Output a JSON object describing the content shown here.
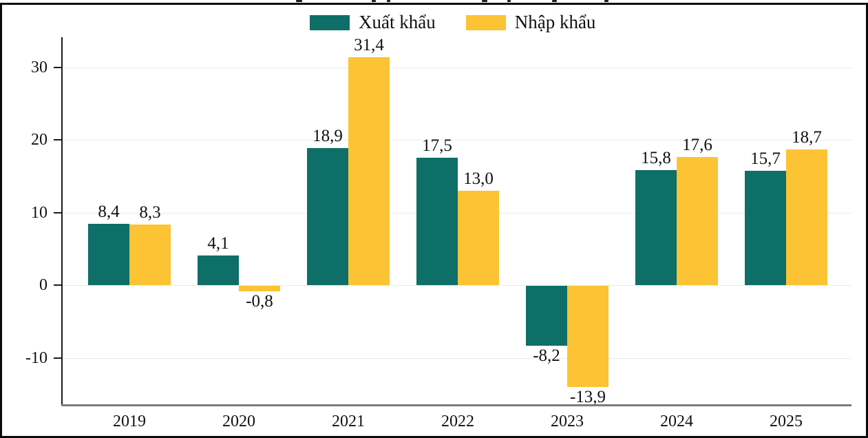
{
  "legend": {
    "items": [
      {
        "label": "Xuất khẩu",
        "color": "#0E6E68"
      },
      {
        "label": "Nhập khẩu",
        "color": "#FCC434"
      }
    ]
  },
  "chart_data": {
    "type": "bar",
    "categories": [
      "2019",
      "2020",
      "2021",
      "2022",
      "2023",
      "2024",
      "2025"
    ],
    "series": [
      {
        "name": "Xuất khẩu",
        "color": "#0E6E68",
        "values": [
          8.4,
          4.1,
          18.9,
          17.5,
          -8.2,
          15.8,
          15.7
        ],
        "labels": [
          "8,4",
          "4,1",
          "18,9",
          "17,5",
          "-8,2",
          "15,8",
          "15,7"
        ]
      },
      {
        "name": "Nhập khẩu",
        "color": "#FCC434",
        "values": [
          8.3,
          -0.8,
          31.4,
          13.0,
          -13.9,
          17.6,
          18.7
        ],
        "labels": [
          "8,3",
          "-0,8",
          "31,4",
          "13,0",
          "-13,9",
          "17,6",
          "18,7"
        ]
      }
    ],
    "y_ticks": [
      30,
      20,
      10,
      0,
      -10
    ],
    "y_tick_labels": [
      "30",
      "20",
      "10",
      "0",
      "-10"
    ],
    "ylim": [
      -15.5,
      34
    ],
    "grid": true,
    "legend_position": "top",
    "xlabel": "",
    "ylabel": "",
    "title": ""
  },
  "colors": {
    "axis": "#1a1a1a",
    "gridline": "#ebebeb",
    "zero_baseline": "#7b7b7b",
    "frame_border": "#0a0a0a",
    "text": "#111111"
  }
}
